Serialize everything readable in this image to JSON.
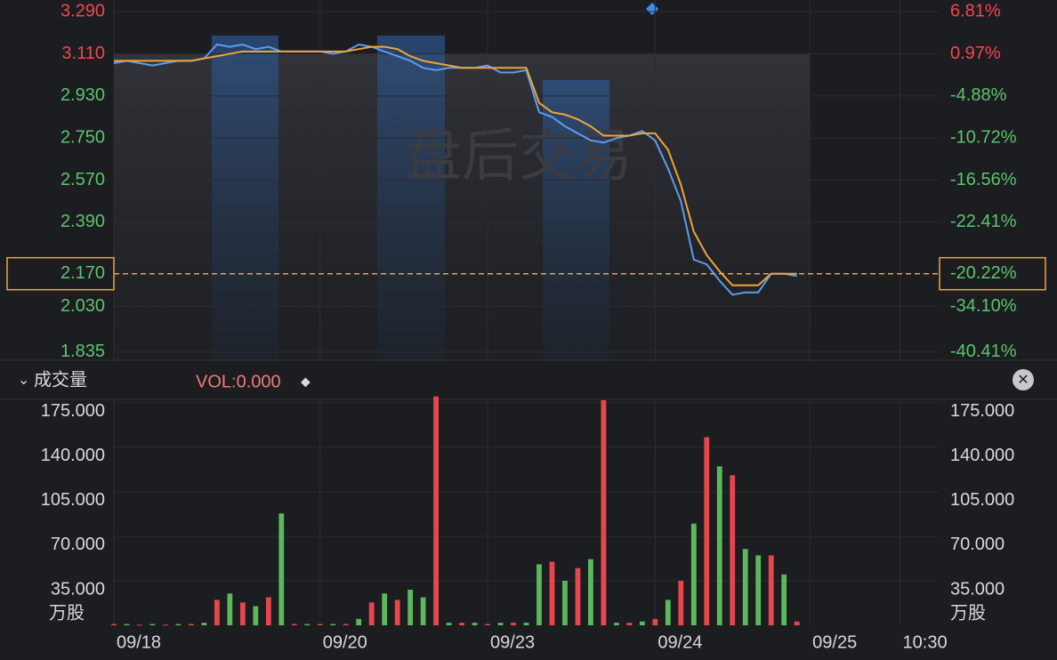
{
  "chart_data": [
    {
      "type": "line",
      "watermark": "盘后交易",
      "categories": [
        "09/18",
        null,
        null,
        null,
        null,
        null,
        null,
        null,
        null,
        null,
        null,
        null,
        null,
        null,
        null,
        null,
        "09/20",
        null,
        null,
        null,
        null,
        null,
        null,
        null,
        null,
        null,
        null,
        null,
        null,
        "09/23",
        null,
        null,
        null,
        null,
        null,
        null,
        null,
        null,
        null,
        null,
        null,
        null,
        "09/24",
        null,
        null,
        null,
        null,
        null,
        null,
        null,
        null,
        null,
        null,
        null,
        "09/25",
        null,
        null,
        null,
        null,
        null,
        null,
        "10:30",
        null,
        null
      ],
      "series": [
        {
          "color": "#5b9cf0",
          "values": [
            3.07,
            3.08,
            3.07,
            3.06,
            3.07,
            3.08,
            3.08,
            3.09,
            3.15,
            3.14,
            3.15,
            3.13,
            3.14,
            3.12,
            3.12,
            3.12,
            3.12,
            3.11,
            3.12,
            3.15,
            3.14,
            3.12,
            3.1,
            3.08,
            3.05,
            3.04,
            3.05,
            3.05,
            3.05,
            3.06,
            3.03,
            3.03,
            3.04,
            2.86,
            2.84,
            2.8,
            2.77,
            2.74,
            2.73,
            2.75,
            2.76,
            2.78,
            2.74,
            2.62,
            2.48,
            2.23,
            2.21,
            2.14,
            2.08,
            2.09,
            2.09,
            2.17,
            2.17,
            2.16,
            null,
            null,
            null,
            null,
            null,
            null,
            null,
            null,
            null,
            null
          ]
        },
        {
          "color": "#f0a33a",
          "values": [
            3.08,
            3.08,
            3.08,
            3.08,
            3.08,
            3.08,
            3.08,
            3.09,
            3.1,
            3.11,
            3.12,
            3.12,
            3.12,
            3.12,
            3.12,
            3.12,
            3.12,
            3.12,
            3.12,
            3.13,
            3.14,
            3.14,
            3.13,
            3.1,
            3.08,
            3.07,
            3.06,
            3.05,
            3.05,
            3.05,
            3.05,
            3.05,
            3.05,
            2.9,
            2.86,
            2.85,
            2.83,
            2.8,
            2.76,
            2.76,
            2.76,
            2.77,
            2.77,
            2.7,
            2.55,
            2.35,
            2.25,
            2.18,
            2.12,
            2.12,
            2.12,
            2.17,
            2.17,
            2.17,
            null,
            null,
            null,
            null,
            null,
            null,
            null,
            null,
            null,
            null
          ]
        }
      ],
      "ylim": [
        1.8,
        3.34
      ],
      "yticks": [
        {
          "value": 3.29,
          "label": "3.290"
        },
        {
          "value": 3.11,
          "label": "3.110"
        },
        {
          "value": 2.93,
          "label": "2.930"
        },
        {
          "value": 2.75,
          "label": "2.750"
        },
        {
          "value": 2.57,
          "label": "2.570"
        },
        {
          "value": 2.39,
          "label": "2.390"
        },
        {
          "value": 2.03,
          "label": "2.030"
        },
        1.835
      ],
      "y2lim": [
        -41.56,
        8.44
      ],
      "y2ticks": [
        {
          "value": 6.81,
          "label": "6.81%"
        },
        {
          "value": 0.97,
          "label": "0.97%"
        },
        {
          "value": -4.88,
          "label": "-4.88%"
        },
        {
          "value": -10.72,
          "label": "-10.72%"
        },
        {
          "value": -16.56,
          "label": "-16.56%"
        },
        {
          "value": -22.41,
          "label": "-22.41%"
        },
        {
          "value": -34.1,
          "label": "-34.10%"
        },
        {
          "value": -40.41,
          "label": "-40.41%"
        }
      ],
      "reference_line": {
        "value": 2.17,
        "label": "2.170",
        "change_label": "-20.22%",
        "color": "#f0a33a"
      },
      "up_color": "#f0474f",
      "down_color": "#5cc46a",
      "grid": true
    },
    {
      "type": "bar",
      "title": "成交量",
      "indicator": "VOL:0.000",
      "unit": "万股",
      "values": [
        1,
        1,
        0.5,
        1,
        0.5,
        1,
        1,
        2,
        20,
        25,
        18,
        15,
        22,
        88,
        1,
        1,
        1,
        1,
        1,
        5,
        18,
        25,
        20,
        28,
        22,
        180,
        2,
        2,
        2,
        1,
        2,
        2,
        2,
        48,
        50,
        35,
        45,
        52,
        177,
        2,
        2,
        3,
        5,
        20,
        35,
        80,
        148,
        125,
        118,
        60,
        55,
        55,
        40,
        3,
        null,
        null,
        null,
        null,
        null,
        null,
        null,
        null,
        null,
        null
      ],
      "colors": [
        "#e5474d",
        "#5cb85c",
        "#e5474d",
        "#5cb85c",
        "#e5474d",
        "#5cb85c",
        "#e5474d",
        "#5cb85c",
        "#e5474d",
        "#5cb85c",
        "#e5474d",
        "#5cb85c",
        "#e5474d",
        "#5cb85c",
        "#e5474d",
        "#5cb85c",
        "#e5474d",
        "#5cb85c",
        "#e5474d",
        "#5cb85c",
        "#e5474d",
        "#5cb85c",
        "#e5474d",
        "#5cb85c",
        "#5cb85c",
        "#e5474d",
        "#5cb85c",
        "#e5474d",
        "#5cb85c",
        "#e5474d",
        "#5cb85c",
        "#e5474d",
        "#5cb85c",
        "#5cb85c",
        "#e5474d",
        "#5cb85c",
        "#e5474d",
        "#5cb85c",
        "#e5474d",
        "#5cb85c",
        "#e5474d",
        "#5cb85c",
        "#e5474d",
        "#5cb85c",
        "#e5474d",
        "#5cb85c",
        "#e5474d",
        "#5cb85c",
        "#e5474d",
        "#5cb85c",
        "#5cb85c",
        "#e5474d",
        "#5cb85c",
        "#e5474d",
        null,
        null,
        null,
        null,
        null,
        null,
        null,
        null,
        null,
        null
      ],
      "ylim": [
        0,
        177
      ],
      "yticks": [
        {
          "value": 175,
          "label": "175.000"
        },
        {
          "value": 140,
          "label": "140.000"
        },
        {
          "value": 105,
          "label": "105.000"
        },
        {
          "value": 70,
          "label": "70.000"
        },
        {
          "value": 35,
          "label": "35.000"
        }
      ],
      "grid": true
    }
  ]
}
